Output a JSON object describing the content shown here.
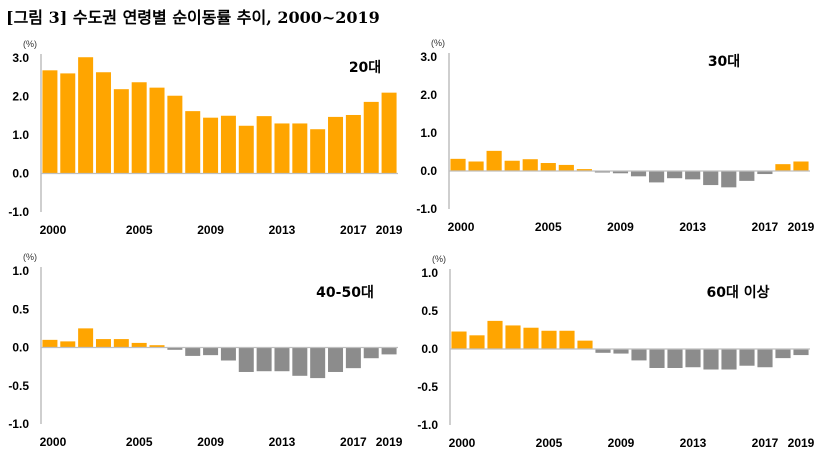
{
  "title": "[그림 3] 수도권 연령별 순이동률 추이, 2000~2019",
  "colors": {
    "positive": "#FFA500",
    "negative": "#8C8C8C",
    "axis": "#BFBFBF"
  },
  "chart_data": [
    {
      "type": "bar",
      "title": "20대",
      "unit": "(%)",
      "ylim": [
        -1.0,
        3.0
      ],
      "yticks": [
        "3.0",
        "2.0",
        "1.0",
        "0.0",
        "-1.0"
      ],
      "ytick_values": [
        3,
        2,
        1,
        0,
        -1
      ],
      "years": [
        2000,
        2001,
        2002,
        2003,
        2004,
        2005,
        2006,
        2007,
        2008,
        2009,
        2010,
        2011,
        2012,
        2013,
        2014,
        2015,
        2016,
        2017,
        2018,
        2019
      ],
      "xtick_labels": [
        "2000",
        "2005",
        "2009",
        "2013",
        "2017",
        "2019"
      ],
      "values": [
        2.68,
        2.6,
        3.02,
        2.63,
        2.19,
        2.37,
        2.23,
        2.02,
        1.62,
        1.45,
        1.5,
        1.24,
        1.49,
        1.3,
        1.3,
        1.15,
        1.47,
        1.52,
        1.86,
        2.1
      ]
    },
    {
      "type": "bar",
      "title": "30대",
      "unit": "(%)",
      "ylim": [
        -1.0,
        3.0
      ],
      "yticks": [
        "3.0",
        "2.0",
        "1.0",
        "0.0",
        "-1.0"
      ],
      "ytick_values": [
        3,
        2,
        1,
        0,
        -1
      ],
      "years": [
        2000,
        2001,
        2002,
        2003,
        2004,
        2005,
        2006,
        2007,
        2008,
        2009,
        2010,
        2011,
        2012,
        2013,
        2014,
        2015,
        2016,
        2017,
        2018,
        2019
      ],
      "xtick_labels": [
        "2000",
        "2005",
        "2009",
        "2013",
        "2017",
        "2019"
      ],
      "values": [
        0.32,
        0.25,
        0.53,
        0.27,
        0.31,
        0.21,
        0.16,
        0.05,
        -0.04,
        -0.06,
        -0.14,
        -0.3,
        -0.19,
        -0.22,
        -0.37,
        -0.43,
        -0.26,
        -0.08,
        0.18,
        0.25
      ]
    },
    {
      "type": "bar",
      "title": "40-50대",
      "unit": "(%)",
      "ylim": [
        -1.0,
        1.0
      ],
      "yticks": [
        "1.0",
        "0.5",
        "0.0",
        "-0.5",
        "-1.0"
      ],
      "ytick_values": [
        1,
        0.5,
        0,
        -0.5,
        -1
      ],
      "years": [
        2000,
        2001,
        2002,
        2003,
        2004,
        2005,
        2006,
        2007,
        2008,
        2009,
        2010,
        2011,
        2012,
        2013,
        2014,
        2015,
        2016,
        2017,
        2018,
        2019
      ],
      "xtick_labels": [
        "2000",
        "2005",
        "2009",
        "2013",
        "2017",
        "2019"
      ],
      "values": [
        0.1,
        0.08,
        0.25,
        0.11,
        0.11,
        0.06,
        0.03,
        -0.03,
        -0.11,
        -0.1,
        -0.17,
        -0.32,
        -0.31,
        -0.31,
        -0.37,
        -0.4,
        -0.32,
        -0.27,
        -0.14,
        -0.09
      ]
    },
    {
      "type": "bar",
      "title": "60대 이상",
      "unit": "(%)",
      "ylim": [
        -1.0,
        1.0
      ],
      "yticks": [
        "1.0",
        "0.5",
        "0.0",
        "-0.5",
        "-1.0"
      ],
      "ytick_values": [
        1,
        0.5,
        0,
        -0.5,
        -1
      ],
      "years": [
        2000,
        2001,
        2002,
        2003,
        2004,
        2005,
        2006,
        2007,
        2008,
        2009,
        2010,
        2011,
        2012,
        2013,
        2014,
        2015,
        2016,
        2017,
        2018,
        2019
      ],
      "xtick_labels": [
        "2000",
        "2005",
        "2009",
        "2013",
        "2017",
        "2019"
      ],
      "values": [
        0.23,
        0.18,
        0.37,
        0.31,
        0.28,
        0.24,
        0.24,
        0.11,
        -0.05,
        -0.06,
        -0.15,
        -0.25,
        -0.25,
        -0.24,
        -0.27,
        -0.27,
        -0.22,
        -0.24,
        -0.12,
        -0.08
      ]
    }
  ]
}
